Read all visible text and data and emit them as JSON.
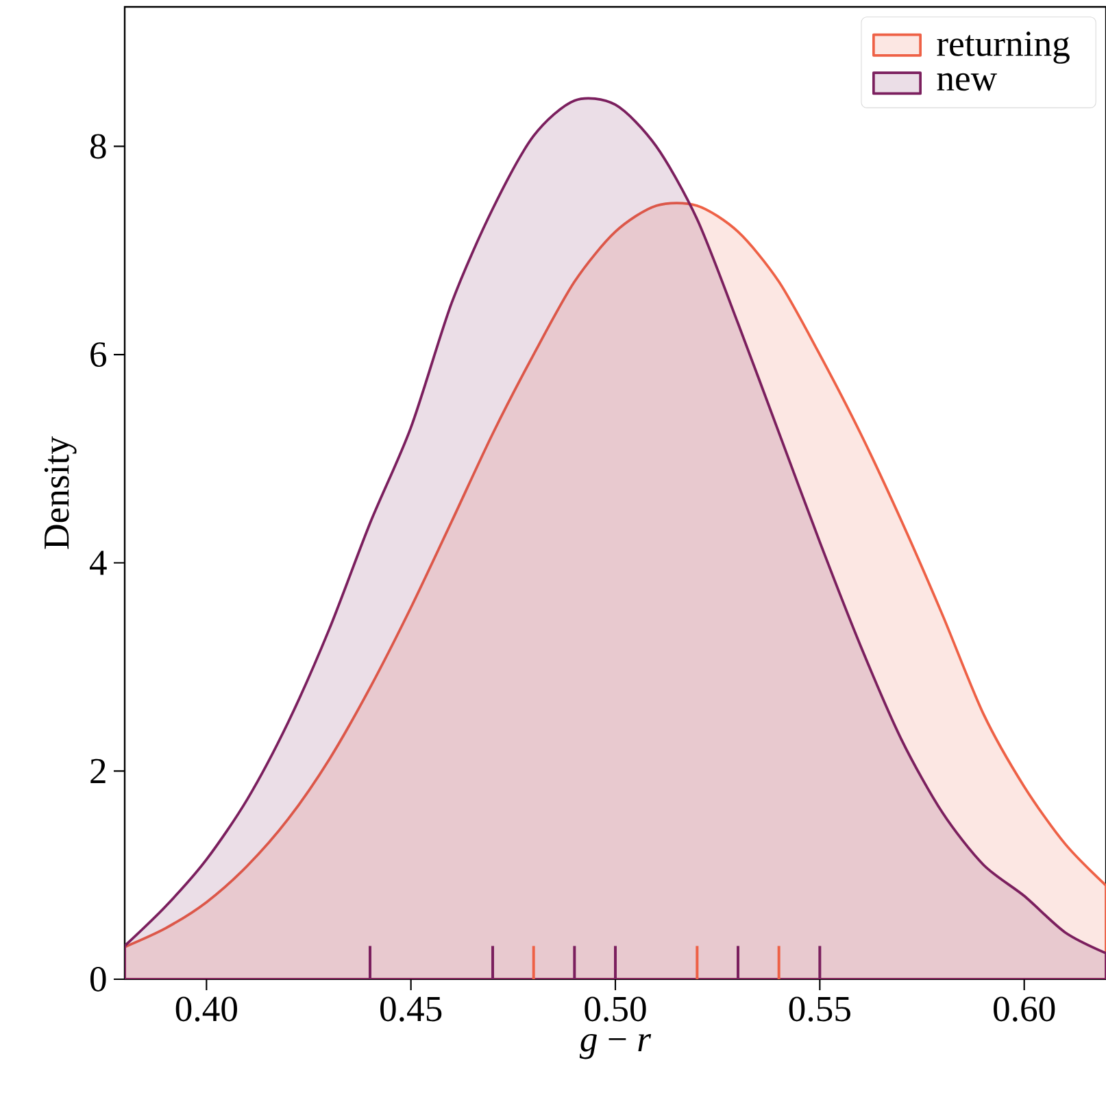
{
  "chart_data": {
    "type": "area",
    "xlabel": "*g* − *r*",
    "ylabel": "Density",
    "x": [
      0.38,
      0.39,
      0.4,
      0.41,
      0.42,
      0.43,
      0.44,
      0.45,
      0.46,
      0.47,
      0.48,
      0.49,
      0.5,
      0.51,
      0.52,
      0.53,
      0.54,
      0.55,
      0.56,
      0.57,
      0.58,
      0.59,
      0.6,
      0.61,
      0.62
    ],
    "series": [
      {
        "name": "returning",
        "color": "#ee6146",
        "values": [
          0.31,
          0.49,
          0.74,
          1.09,
          1.54,
          2.11,
          2.8,
          3.57,
          4.4,
          5.24,
          6.0,
          6.7,
          7.18,
          7.43,
          7.43,
          7.18,
          6.7,
          6.0,
          5.24,
          4.4,
          3.5,
          2.55,
          1.85,
          1.3,
          0.9
        ]
      },
      {
        "name": "new",
        "color": "#7b1f5e",
        "values": [
          0.32,
          0.7,
          1.15,
          1.73,
          2.47,
          3.36,
          4.38,
          5.3,
          6.5,
          7.4,
          8.1,
          8.44,
          8.4,
          8.0,
          7.3,
          6.3,
          5.25,
          4.2,
          3.2,
          2.3,
          1.6,
          1.1,
          0.8,
          0.45,
          0.25
        ]
      },
      {
        "type": "bar",
        "color": "#ee6146",
        "x": [
          0.48,
          0.52,
          0.54
        ],
        "values": [
          0.32,
          0.32,
          0.32
        ]
      },
      {
        "type": "bar",
        "color": "#7b1f5e",
        "x": [
          0.44,
          0.47,
          0.49,
          0.5,
          0.53,
          0.55
        ],
        "values": [
          0.32,
          0.32,
          0.32,
          0.32,
          0.32,
          0.32
        ]
      }
    ],
    "xlim": [
      0.38,
      0.62
    ],
    "ylim": [
      0,
      9.34
    ],
    "xticks": [
      {
        "value": 0.4,
        "label": "0.40"
      },
      {
        "value": 0.45,
        "label": "0.45"
      },
      {
        "value": 0.5,
        "label": "0.50"
      },
      {
        "value": 0.55,
        "label": "0.55"
      },
      {
        "value": 0.6,
        "label": "0.60"
      }
    ],
    "yticks": [
      0,
      2,
      4,
      6,
      8
    ],
    "legend": "top right"
  }
}
